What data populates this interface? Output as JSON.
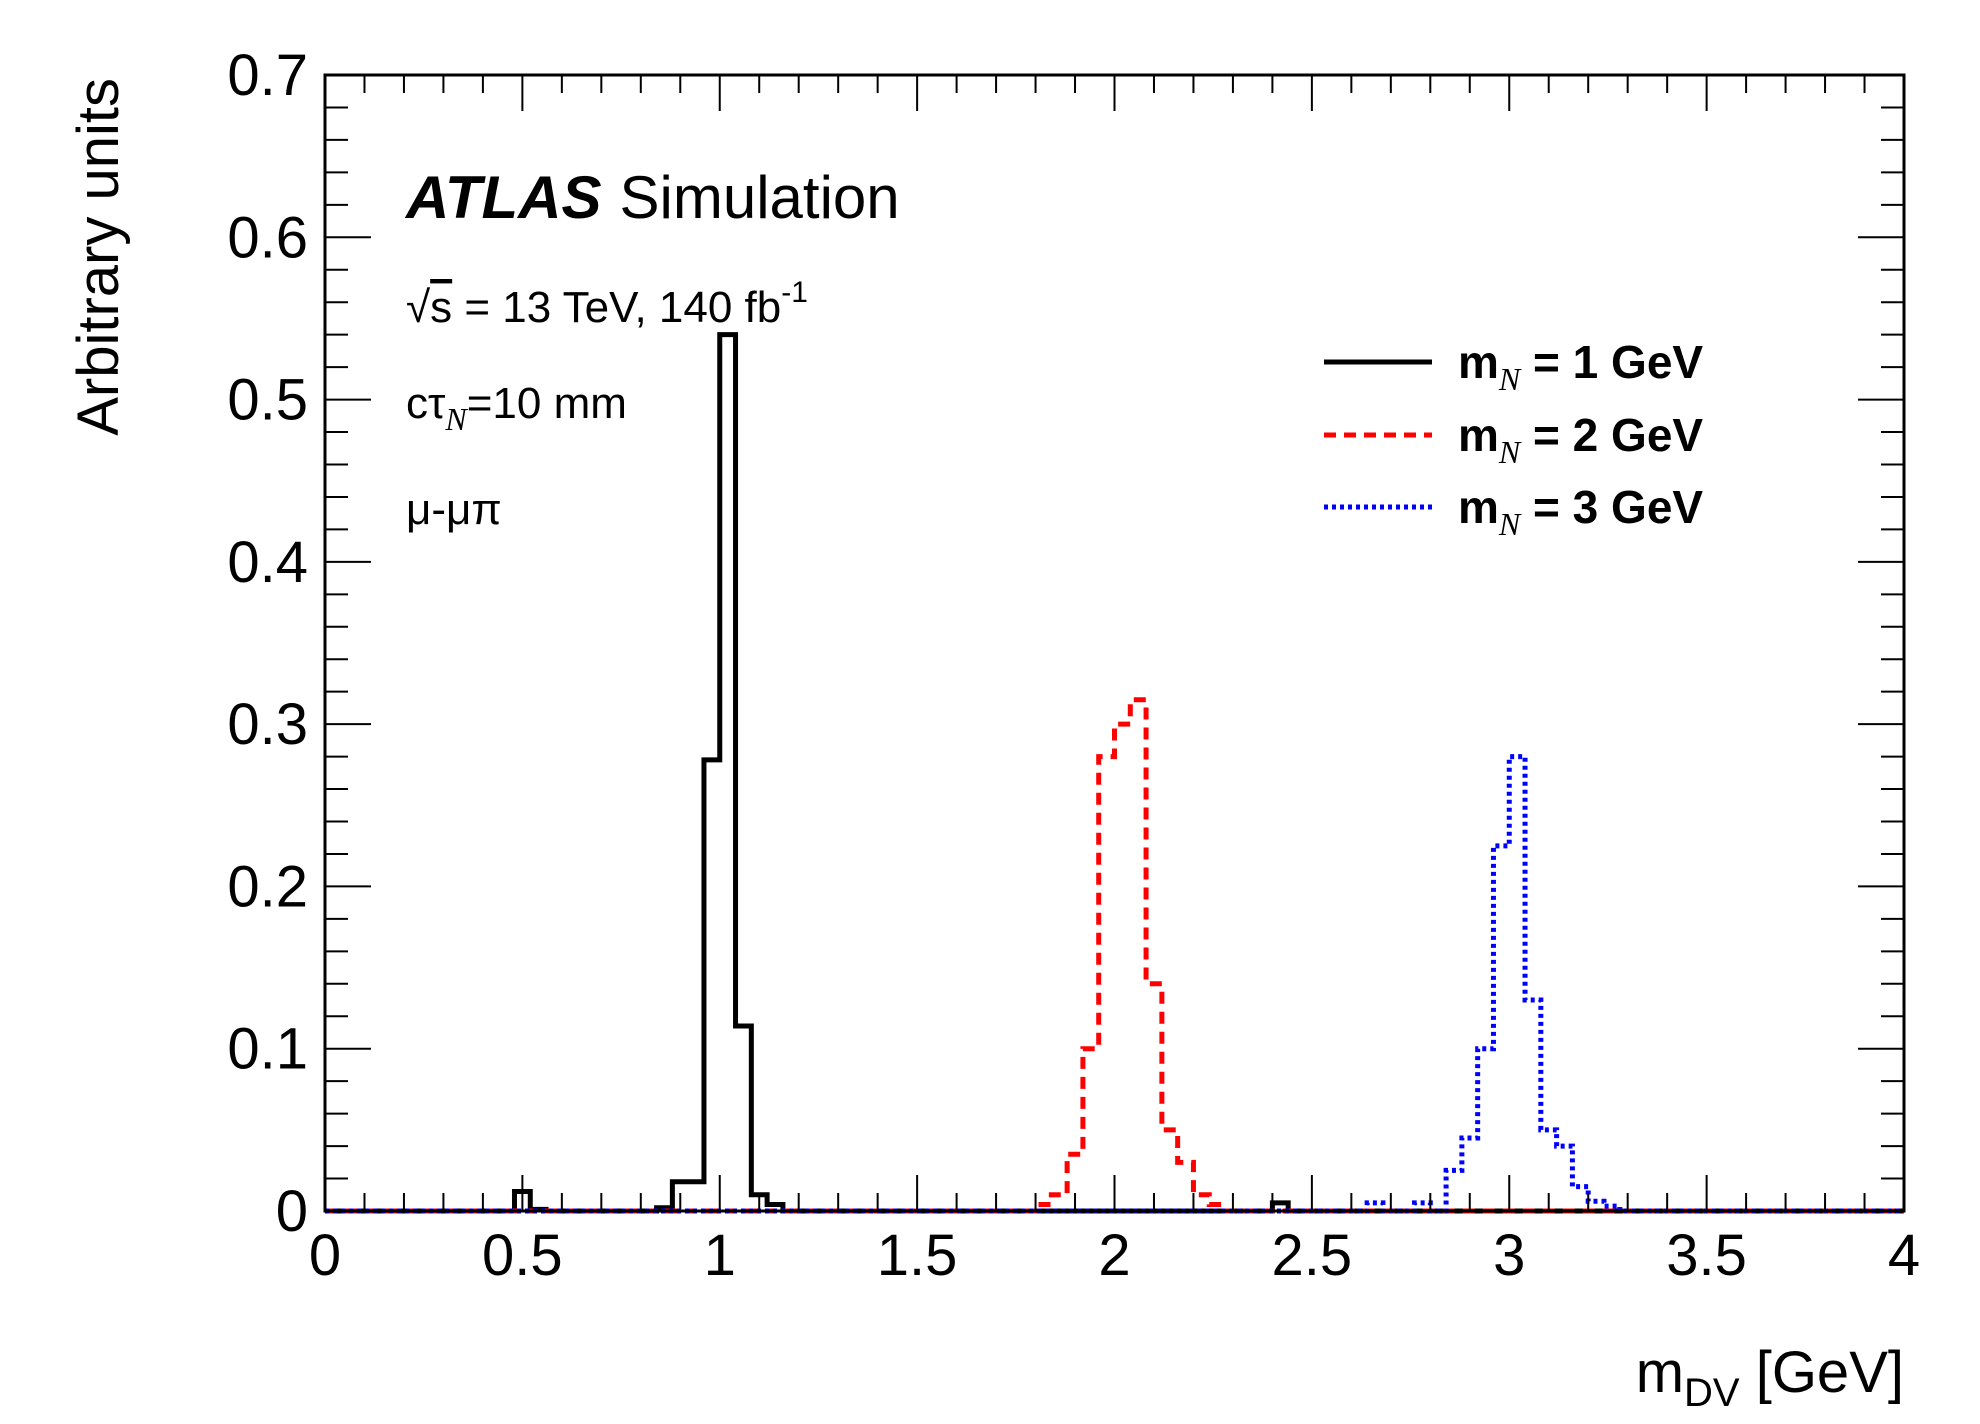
{
  "chart_data": {
    "type": "line",
    "style": "histogram-step",
    "xlabel": "m",
    "xlabel_sub": "DV",
    "xlabel_unit": " [GeV]",
    "ylabel": "Arbitrary units",
    "xlim": [
      0,
      4
    ],
    "ylim": [
      0,
      0.7
    ],
    "x_ticks": [
      "0",
      "0.5",
      "1",
      "1.5",
      "2",
      "2.5",
      "3",
      "3.5",
      "4"
    ],
    "y_ticks": [
      "0",
      "0.1",
      "0.2",
      "0.3",
      "0.4",
      "0.5",
      "0.6",
      "0.7"
    ],
    "bin_width": 0.04,
    "grid": false,
    "legend_position": "top-right",
    "annotations": {
      "atlas": "ATLAS",
      "simulation": "Simulation",
      "sqrt": "√",
      "energy_s": "s",
      "energy_rest": " = 13 TeV, 140 fb",
      "energy_sup": "-1",
      "ctau_c": "cτ",
      "ctau_sub": "N",
      "ctau_rest": "=10 mm",
      "channel": "μ-μπ"
    },
    "series": [
      {
        "name": "m_N = 1 GeV",
        "label_m": "m",
        "label_sub": "N",
        "label_rest": " = 1 GeV",
        "color": "#000000",
        "dash": "solid",
        "bins": [
          {
            "x": 0.48,
            "y": 0.012
          },
          {
            "x": 0.52,
            "y": 0.001
          },
          {
            "x": 0.84,
            "y": 0.002
          },
          {
            "x": 0.88,
            "y": 0.018
          },
          {
            "x": 0.92,
            "y": 0.018
          },
          {
            "x": 0.96,
            "y": 0.278
          },
          {
            "x": 1.0,
            "y": 0.54
          },
          {
            "x": 1.04,
            "y": 0.114
          },
          {
            "x": 1.08,
            "y": 0.01
          },
          {
            "x": 1.12,
            "y": 0.004
          },
          {
            "x": 2.4,
            "y": 0.005
          }
        ]
      },
      {
        "name": "m_N = 2 GeV",
        "label_m": "m",
        "label_sub": "N",
        "label_rest": " = 2 GeV",
        "color": "#ff0000",
        "dash": "dashed",
        "bins": [
          {
            "x": 1.8,
            "y": 0.004
          },
          {
            "x": 1.84,
            "y": 0.01
          },
          {
            "x": 1.88,
            "y": 0.035
          },
          {
            "x": 1.92,
            "y": 0.1
          },
          {
            "x": 1.96,
            "y": 0.28
          },
          {
            "x": 2.0,
            "y": 0.3
          },
          {
            "x": 2.04,
            "y": 0.315
          },
          {
            "x": 2.08,
            "y": 0.14
          },
          {
            "x": 2.12,
            "y": 0.05
          },
          {
            "x": 2.16,
            "y": 0.03
          },
          {
            "x": 2.2,
            "y": 0.01
          },
          {
            "x": 2.24,
            "y": 0.004
          }
        ]
      },
      {
        "name": "m_N = 3 GeV",
        "label_m": "m",
        "label_sub": "N",
        "label_rest": " = 3 GeV",
        "color": "#0000ff",
        "dash": "dotted",
        "bins": [
          {
            "x": 2.64,
            "y": 0.005
          },
          {
            "x": 2.76,
            "y": 0.005
          },
          {
            "x": 2.84,
            "y": 0.025
          },
          {
            "x": 2.88,
            "y": 0.045
          },
          {
            "x": 2.92,
            "y": 0.1
          },
          {
            "x": 2.96,
            "y": 0.225
          },
          {
            "x": 3.0,
            "y": 0.28
          },
          {
            "x": 3.04,
            "y": 0.13
          },
          {
            "x": 3.08,
            "y": 0.05
          },
          {
            "x": 3.12,
            "y": 0.04
          },
          {
            "x": 3.16,
            "y": 0.015
          },
          {
            "x": 3.2,
            "y": 0.006
          },
          {
            "x": 3.24,
            "y": 0.003
          }
        ]
      }
    ]
  }
}
